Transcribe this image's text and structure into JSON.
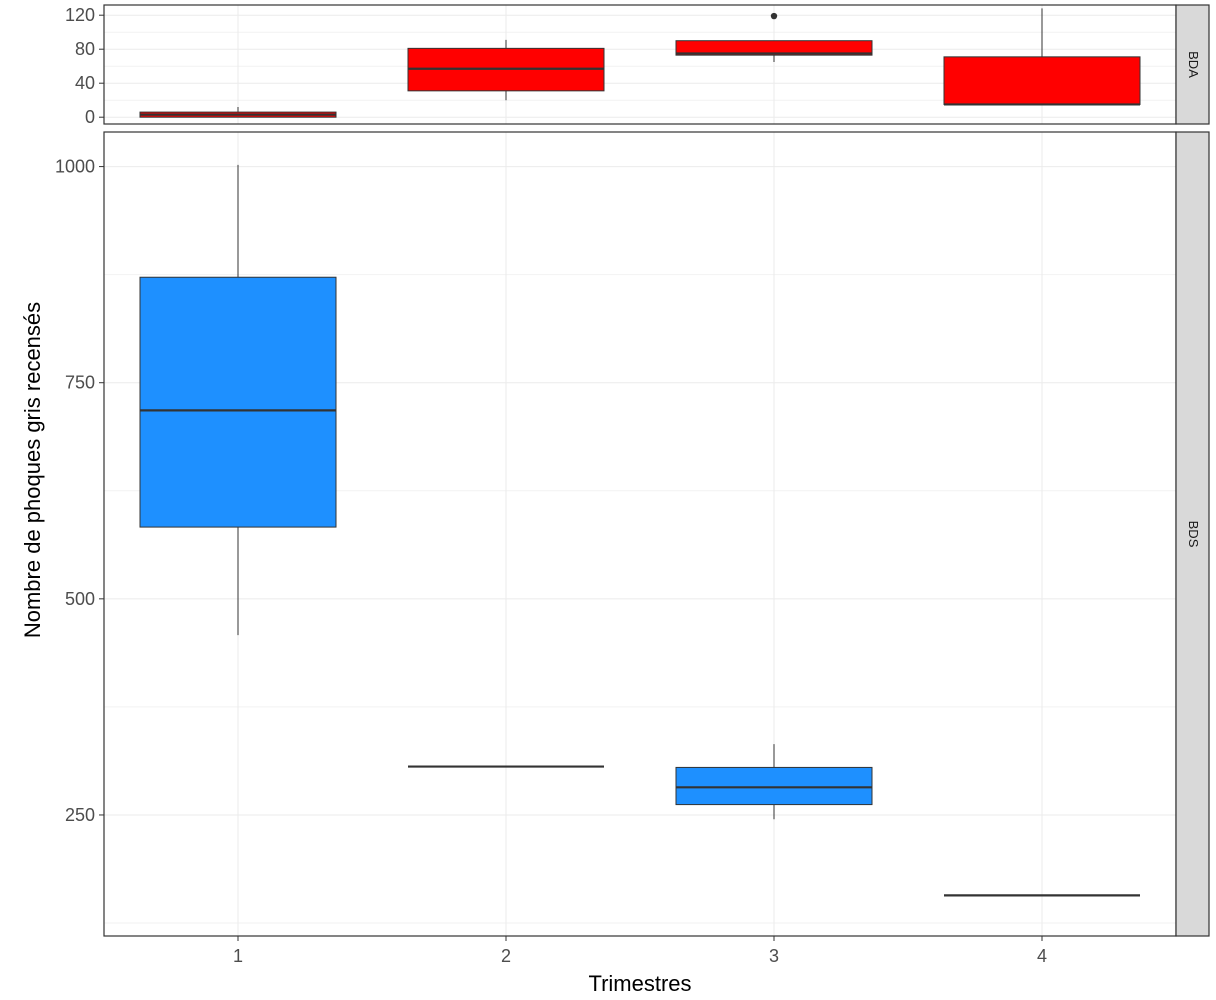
{
  "chart_data": {
    "type": "boxplot",
    "xlabel": "Trimestres",
    "ylabel": "Nombre de phoques gris recensés",
    "categories": [
      "1",
      "2",
      "3",
      "4"
    ],
    "grid": true,
    "facets": [
      {
        "strip_label": "BDA",
        "fill_color": "#ff0000",
        "ylim": [
          -8,
          132
        ],
        "y_ticks": [
          0,
          40,
          80,
          120
        ],
        "boxes": [
          {
            "category": "1",
            "min": 0,
            "q1": 0,
            "median": 3,
            "q3": 6,
            "max": 12,
            "outliers": []
          },
          {
            "category": "2",
            "min": 20,
            "q1": 31,
            "median": 57,
            "q3": 81,
            "max": 91,
            "outliers": []
          },
          {
            "category": "3",
            "min": 65,
            "q1": 73,
            "median": 75,
            "q3": 90,
            "max": 90,
            "outliers": [
              119
            ]
          },
          {
            "category": "4",
            "min": 15,
            "q1": 15,
            "median": 15,
            "q3": 71,
            "max": 128,
            "outliers": []
          }
        ]
      },
      {
        "strip_label": "BDS",
        "fill_color": "#1e90ff",
        "ylim": [
          110,
          1040
        ],
        "y_ticks": [
          250,
          500,
          750,
          1000
        ],
        "boxes": [
          {
            "category": "1",
            "min": 458,
            "q1": 583,
            "median": 718,
            "q3": 872,
            "max": 1002,
            "outliers": []
          },
          {
            "category": "2",
            "min": 306,
            "q1": 306,
            "median": 306,
            "q3": 306,
            "max": 306,
            "outliers": []
          },
          {
            "category": "3",
            "min": 245,
            "q1": 262,
            "median": 282,
            "q3": 305,
            "max": 332,
            "outliers": []
          },
          {
            "category": "4",
            "min": 157,
            "q1": 157,
            "median": 157,
            "q3": 157,
            "max": 157,
            "outliers": []
          }
        ]
      }
    ]
  }
}
